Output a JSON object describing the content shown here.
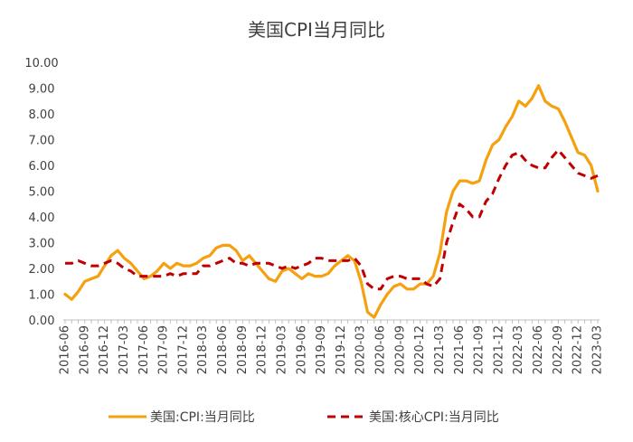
{
  "chart_data": {
    "type": "line",
    "title": "美国CPI当月同比",
    "xlabel": "",
    "ylabel": "",
    "ylim": [
      0,
      10
    ],
    "yticks": [
      "0.00",
      "1.00",
      "2.00",
      "3.00",
      "4.00",
      "5.00",
      "6.00",
      "7.00",
      "8.00",
      "9.00",
      "10.00"
    ],
    "grid": false,
    "legend_position": "bottom",
    "x": [
      "2016-06",
      "2016-07",
      "2016-08",
      "2016-09",
      "2016-10",
      "2016-11",
      "2016-12",
      "2017-01",
      "2017-02",
      "2017-03",
      "2017-04",
      "2017-05",
      "2017-06",
      "2017-07",
      "2017-08",
      "2017-09",
      "2017-10",
      "2017-11",
      "2017-12",
      "2018-01",
      "2018-02",
      "2018-03",
      "2018-04",
      "2018-05",
      "2018-06",
      "2018-07",
      "2018-08",
      "2018-09",
      "2018-10",
      "2018-11",
      "2018-12",
      "2019-01",
      "2019-02",
      "2019-03",
      "2019-04",
      "2019-05",
      "2019-06",
      "2019-07",
      "2019-08",
      "2019-09",
      "2019-10",
      "2019-11",
      "2019-12",
      "2020-01",
      "2020-02",
      "2020-03",
      "2020-04",
      "2020-05",
      "2020-06",
      "2020-07",
      "2020-08",
      "2020-09",
      "2020-10",
      "2020-11",
      "2020-12",
      "2021-01",
      "2021-02",
      "2021-03",
      "2021-04",
      "2021-05",
      "2021-06",
      "2021-07",
      "2021-08",
      "2021-09",
      "2021-10",
      "2021-11",
      "2021-12",
      "2022-01",
      "2022-02",
      "2022-03",
      "2022-04",
      "2022-05",
      "2022-06",
      "2022-07",
      "2022-08",
      "2022-09",
      "2022-10",
      "2022-11",
      "2022-12",
      "2023-01",
      "2023-02",
      "2023-03"
    ],
    "x_tick_labels": [
      "2016-06",
      "2016-09",
      "2016-12",
      "2017-03",
      "2017-06",
      "2017-09",
      "2017-12",
      "2018-03",
      "2018-06",
      "2018-09",
      "2018-12",
      "2019-03",
      "2019-06",
      "2019-09",
      "2019-12",
      "2020-03",
      "2020-06",
      "2020-09",
      "2020-12",
      "2021-03",
      "2021-06",
      "2021-09",
      "2021-12",
      "2022-03",
      "2022-06",
      "2022-09",
      "2022-12",
      "2023-03"
    ],
    "series": [
      {
        "name": "美国:CPI:当月同比",
        "color": "#F5A00F",
        "style": "solid",
        "values": [
          1.0,
          0.8,
          1.1,
          1.5,
          1.6,
          1.7,
          2.1,
          2.5,
          2.7,
          2.4,
          2.2,
          1.9,
          1.6,
          1.7,
          1.9,
          2.2,
          2.0,
          2.2,
          2.1,
          2.1,
          2.2,
          2.4,
          2.5,
          2.8,
          2.9,
          2.9,
          2.7,
          2.3,
          2.5,
          2.2,
          1.9,
          1.6,
          1.5,
          1.9,
          2.0,
          1.8,
          1.6,
          1.8,
          1.7,
          1.7,
          1.8,
          2.1,
          2.3,
          2.5,
          2.3,
          1.5,
          0.3,
          0.1,
          0.6,
          1.0,
          1.3,
          1.4,
          1.2,
          1.2,
          1.4,
          1.4,
          1.7,
          2.6,
          4.2,
          5.0,
          5.4,
          5.4,
          5.3,
          5.4,
          6.2,
          6.8,
          7.0,
          7.5,
          7.9,
          8.5,
          8.3,
          8.6,
          9.1,
          8.5,
          8.3,
          8.2,
          7.7,
          7.1,
          6.5,
          6.4,
          6.0,
          5.0
        ]
      },
      {
        "name": "美国:核心CPI:当月同比",
        "color": "#C00000",
        "style": "dashed",
        "values": [
          2.2,
          2.2,
          2.3,
          2.2,
          2.1,
          2.1,
          2.2,
          2.3,
          2.2,
          2.0,
          1.9,
          1.7,
          1.7,
          1.7,
          1.7,
          1.7,
          1.8,
          1.7,
          1.8,
          1.8,
          1.8,
          2.1,
          2.1,
          2.2,
          2.3,
          2.4,
          2.2,
          2.2,
          2.1,
          2.2,
          2.2,
          2.2,
          2.1,
          2.0,
          2.1,
          2.0,
          2.1,
          2.2,
          2.4,
          2.4,
          2.3,
          2.3,
          2.3,
          2.3,
          2.4,
          2.1,
          1.4,
          1.2,
          1.2,
          1.6,
          1.7,
          1.7,
          1.6,
          1.6,
          1.6,
          1.4,
          1.3,
          1.6,
          3.0,
          3.8,
          4.5,
          4.3,
          4.0,
          4.0,
          4.6,
          4.9,
          5.5,
          6.0,
          6.4,
          6.5,
          6.2,
          6.0,
          5.9,
          5.9,
          6.3,
          6.6,
          6.3,
          6.0,
          5.7,
          5.6,
          5.5,
          5.6
        ]
      }
    ]
  }
}
